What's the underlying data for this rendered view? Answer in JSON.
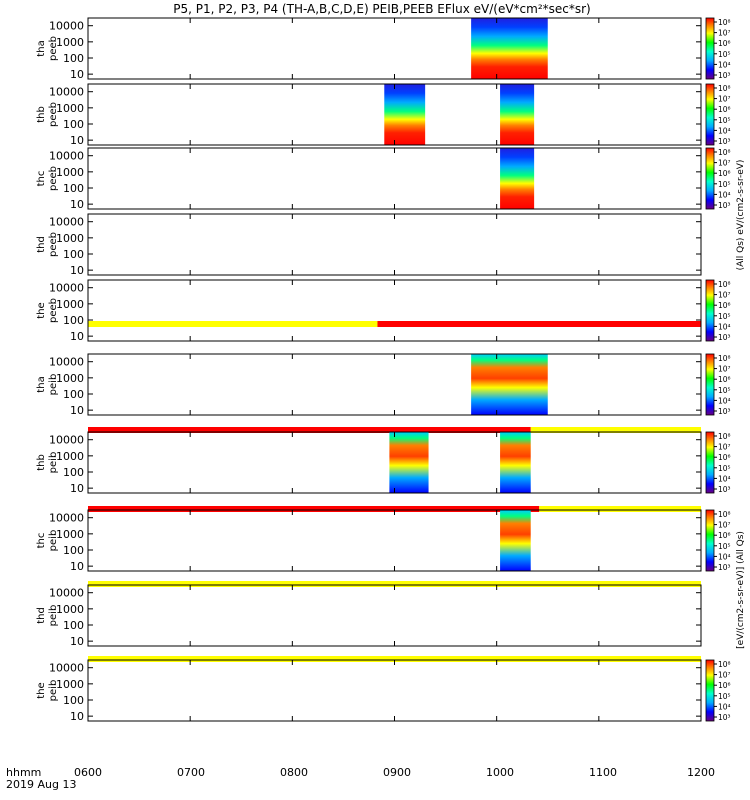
{
  "title": "P5, P1, P2, P3, P4 (TH-A,B,C,D,E) PEIB,PEEB EFlux eV/(eV*cm²*sec*sr)",
  "colorbar_label_electron": "(All Qs) eV/(cm2-s-sr-eV)",
  "colorbar_label_ion": "[eV/(cm2-s-sr-eV)] (All Qs)",
  "x_axis": {
    "ticks": [
      "0600",
      "0700",
      "0800",
      "0900",
      "1000",
      "1100",
      "1200"
    ],
    "label": "hhmm",
    "date": "2019 Aug 13"
  },
  "y_ticks": [
    "10000",
    "1000",
    "100",
    "10"
  ],
  "colorbar_ticks": [
    "10⁸",
    "10⁷",
    "10⁶",
    "10⁵",
    "10⁴",
    "10³"
  ],
  "colors": {
    "mode_yellow": "#ffff00",
    "mode_red": "#ff0000",
    "colorscale": [
      "#6a0080",
      "#0000ff",
      "#00aaff",
      "#00ffcc",
      "#00ff00",
      "#ffff00",
      "#ff8000",
      "#ff0000"
    ]
  },
  "chart_data": {
    "type": "heatmap",
    "x_units": "hhmm (UT)",
    "x_range": [
      "0600",
      "1200"
    ],
    "y_scale": "log",
    "y_range_eV": [
      5,
      30000
    ],
    "colorbar_range": [
      1000,
      100000000
    ],
    "panels": [
      {
        "label1": "tha",
        "label2": "peeb",
        "y_ticks": [
          "10000",
          "1000",
          "100",
          "10"
        ],
        "data_intervals": [
          [
            "0945",
            "1030"
          ]
        ],
        "colorbar": true
      },
      {
        "label1": "thb",
        "label2": "peeb",
        "y_ticks": [
          "10000",
          "1000",
          "100",
          "10"
        ],
        "data_intervals": [
          [
            "0854",
            "0878"
          ],
          [
            "0962",
            "0982"
          ]
        ],
        "colorbar": true
      },
      {
        "label1": "thc",
        "label2": "peeb",
        "y_ticks": [
          "10000",
          "1000",
          "100",
          "10"
        ],
        "data_intervals": [
          [
            "0962",
            "0982"
          ]
        ],
        "colorbar": true
      },
      {
        "label1": "thd",
        "label2": "peeb",
        "y_ticks": [
          "10000",
          "1000",
          "100",
          "10"
        ],
        "data_intervals": [],
        "colorbar": false
      },
      {
        "label1": "the",
        "label2": "peeb",
        "y_ticks": [
          "10000",
          "1000",
          "100",
          "10"
        ],
        "data_intervals": [],
        "colorbar": true
      },
      {
        "label1": "tha",
        "label2": "peib",
        "y_ticks": [
          "10000",
          "1000",
          "100",
          "10"
        ],
        "data_intervals": [
          [
            "0945",
            "1030"
          ]
        ],
        "colorbar": true
      },
      {
        "label1": "thb",
        "label2": "peib",
        "y_ticks": [
          "10000",
          "1000",
          "100",
          "10"
        ],
        "data_intervals": [
          [
            "0857",
            "0880"
          ],
          [
            "0962",
            "0980"
          ]
        ],
        "colorbar": true
      },
      {
        "label1": "thc",
        "label2": "peib",
        "y_ticks": [
          "10000",
          "1000",
          "100",
          "10"
        ],
        "data_intervals": [
          [
            "0962",
            "0980"
          ]
        ],
        "colorbar": true
      },
      {
        "label1": "thd",
        "label2": "peib",
        "y_ticks": [
          "10000",
          "1000",
          "100",
          "10"
        ],
        "data_intervals": [],
        "colorbar": false
      },
      {
        "label1": "the",
        "label2": "peib",
        "y_ticks": [
          "10000",
          "1000",
          "100",
          "10"
        ],
        "data_intervals": [],
        "colorbar": true
      }
    ],
    "mode_bars": [
      {
        "segments": [
          [
            "0600",
            "0850",
            "#ffff00"
          ],
          [
            "0850",
            "1200",
            "#ff0000"
          ]
        ]
      },
      {
        "segments": [
          [
            "0600",
            "0980",
            "#ff0000"
          ],
          [
            "0980",
            "1200",
            "#ffff00"
          ]
        ]
      },
      {
        "segments": [
          [
            "0600",
            "0985",
            "#ff0000"
          ],
          [
            "0985",
            "1200",
            "#ffff00"
          ]
        ]
      },
      {
        "segments": [
          [
            "0600",
            "1200",
            "#ffff00"
          ]
        ]
      },
      {
        "segments": [
          [
            "0600",
            "1200",
            "#ffff00"
          ]
        ]
      }
    ]
  }
}
